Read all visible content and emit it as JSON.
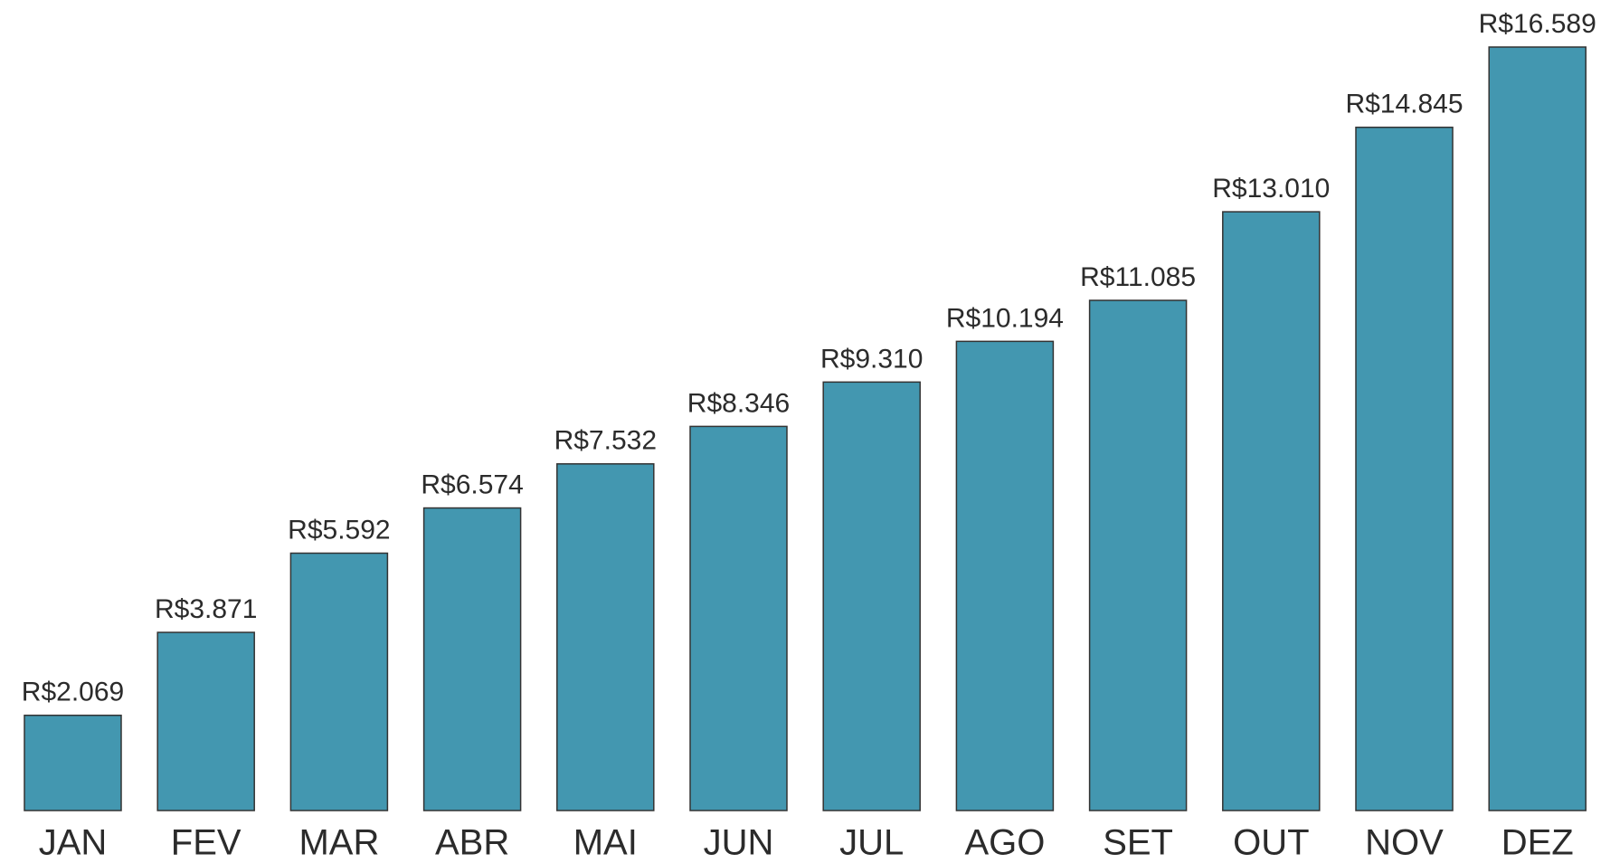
{
  "chart_data": {
    "type": "bar",
    "categories": [
      "JAN",
      "FEV",
      "MAR",
      "ABR",
      "MAI",
      "JUN",
      "JUL",
      "AGO",
      "SET",
      "OUT",
      "NOV",
      "DEZ"
    ],
    "values": [
      2069,
      3871,
      5592,
      6574,
      7532,
      8346,
      9310,
      10194,
      11085,
      13010,
      14845,
      16589
    ],
    "value_labels": [
      "R$2.069",
      "R$3.871",
      "R$5.592",
      "R$6.574",
      "R$7.532",
      "R$8.346",
      "R$9.310",
      "R$10.194",
      "R$11.085",
      "R$13.010",
      "R$14.845",
      "R$16.589"
    ],
    "color": "#4397b0"
  }
}
